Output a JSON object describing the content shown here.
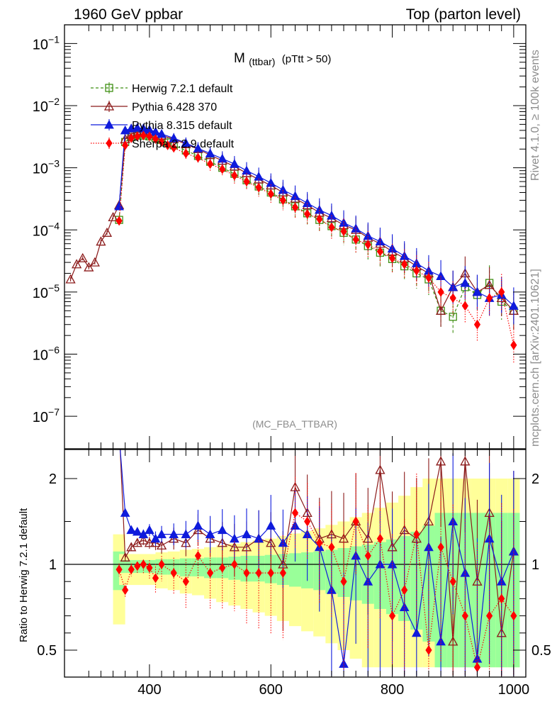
{
  "header": {
    "left": "1960 GeV ppbar",
    "right": "Top (parton level)"
  },
  "side_labels": {
    "rivet": "Rivet 4.1.0, ≥ 100k events",
    "mcplots": "mcplots.cern.ch [arXiv:2401.10621]"
  },
  "watermark": "(MC_FBA_TTBAR)",
  "plot_title": {
    "main": "M",
    "sub": "(ttbar)",
    "cut": "(pTtt > 50)"
  },
  "colors": {
    "herwig": "#3f8f13",
    "pythia6": "#8b1a1a",
    "pythia8": "#0f1bdc",
    "sherpa": "#ff0000",
    "band_yellow": "#ffff99",
    "band_green": "#99ff99"
  },
  "chart_data": [
    {
      "type": "line",
      "log_y": true,
      "title": "M (ttbar) (pTtt > 50)",
      "xlabel": "",
      "ylabel": "",
      "xlim": [
        260,
        1020
      ],
      "ylim": [
        3e-08,
        0.2
      ],
      "y_ticks": [
        {
          "value": 1e-07,
          "base": "10",
          "exp": "−7"
        },
        {
          "value": 1e-06,
          "base": "10",
          "exp": "−6"
        },
        {
          "value": 1e-05,
          "base": "10",
          "exp": "−5"
        },
        {
          "value": 0.0001,
          "base": "10",
          "exp": "−4"
        },
        {
          "value": 0.001,
          "base": "10",
          "exp": "−3"
        },
        {
          "value": 0.01,
          "base": "10",
          "exp": "−2"
        },
        {
          "value": 0.1,
          "base": "10",
          "exp": "−1"
        }
      ],
      "legend": [
        {
          "key": "herwig",
          "label": "Herwig 7.2.1 default"
        },
        {
          "key": "pythia6",
          "label": "Pythia 6.428 370"
        },
        {
          "key": "pythia8",
          "label": "Pythia 8.315 default"
        },
        {
          "key": "sherpa",
          "label": "Sherpa 2.2.9 default"
        }
      ],
      "series": [
        {
          "key": "herwig",
          "name": "Herwig 7.2.1 default",
          "marker": "square-open",
          "dash": "4,3",
          "x": [
            350,
            360,
            370,
            380,
            390,
            400,
            410,
            420,
            430,
            440,
            460,
            480,
            500,
            520,
            540,
            560,
            580,
            600,
            620,
            640,
            660,
            680,
            700,
            720,
            740,
            760,
            780,
            800,
            820,
            840,
            860,
            880,
            900,
            920,
            940,
            960,
            980,
            1000
          ],
          "y": [
            0.000145,
            0.0026,
            0.0031,
            0.0033,
            0.0033,
            0.0032,
            0.003,
            0.0028,
            0.00255,
            0.0023,
            0.0019,
            0.00155,
            0.00125,
            0.001,
            0.0008,
            0.00063,
            0.0005,
            0.0004,
            0.00031,
            0.00024,
            0.000185,
            0.000145,
            0.000115,
            9e-05,
            7e-05,
            5.5e-05,
            4.3e-05,
            3.4e-05,
            2.6e-05,
            2e-05,
            1.6e-05,
            5e-06,
            4e-06,
            1.2e-05,
            9e-06,
            1.4e-05,
            7e-06,
            5e-06
          ]
        },
        {
          "key": "pythia6",
          "name": "Pythia 6.428 370",
          "marker": "triangle-open",
          "dash": "",
          "x": [
            270,
            280,
            290,
            300,
            310,
            320,
            330,
            340,
            350,
            360,
            370,
            380,
            390,
            400,
            410,
            420,
            440,
            460,
            480,
            500,
            520,
            540,
            560,
            580,
            600,
            620,
            640,
            660,
            680,
            700,
            720,
            740,
            760,
            780,
            800,
            820,
            840,
            860,
            880,
            900,
            920,
            940,
            960,
            980,
            1000
          ],
          "y": [
            1.6e-05,
            2.8e-05,
            3.5e-05,
            2.5e-05,
            3e-05,
            6.5e-05,
            9e-05,
            0.00016,
            0.00025,
            0.0029,
            0.0035,
            0.0037,
            0.0038,
            0.0037,
            0.0035,
            0.0033,
            0.0029,
            0.0024,
            0.002,
            0.0016,
            0.0013,
            0.00105,
            0.00082,
            0.00065,
            0.00052,
            0.0004,
            0.00032,
            0.00025,
            0.00019,
            0.000155,
            0.00012,
            0.0001,
            7.5e-05,
            6e-05,
            4.5e-05,
            3.5e-05,
            2.6e-05,
            2e-05,
            5e-06,
            1.2e-05,
            2e-05,
            1e-05,
            1.3e-05,
            8e-06,
            5e-06
          ]
        },
        {
          "key": "pythia8",
          "name": "Pythia 8.315 default",
          "marker": "triangle-filled",
          "dash": "",
          "x": [
            350,
            360,
            370,
            380,
            390,
            400,
            410,
            420,
            440,
            460,
            480,
            500,
            520,
            540,
            560,
            580,
            600,
            620,
            640,
            660,
            680,
            700,
            720,
            740,
            760,
            780,
            800,
            820,
            840,
            860,
            880,
            900,
            920,
            940,
            960,
            980,
            1000
          ],
          "y": [
            0.00024,
            0.004,
            0.0043,
            0.0044,
            0.0043,
            0.0041,
            0.0038,
            0.0035,
            0.003,
            0.0025,
            0.00205,
            0.0017,
            0.0014,
            0.00115,
            0.0009,
            0.00072,
            0.00057,
            0.00044,
            0.00035,
            0.00027,
            0.00021,
            0.00017,
            0.00013,
            0.000105,
            8e-05,
            6.5e-05,
            5e-05,
            3.8e-05,
            2.9e-05,
            2.2e-05,
            1.8e-05,
            1.2e-05,
            1.4e-05,
            1e-05,
            8e-06,
            9e-06,
            6e-06
          ]
        },
        {
          "key": "sherpa",
          "name": "Sherpa 2.2.9 default",
          "marker": "diamond-filled",
          "dash": "1.5,2",
          "x": [
            350,
            360,
            370,
            380,
            390,
            400,
            410,
            420,
            430,
            440,
            460,
            480,
            500,
            520,
            540,
            560,
            580,
            600,
            620,
            640,
            660,
            680,
            700,
            720,
            740,
            760,
            780,
            800,
            820,
            840,
            860,
            880,
            900,
            920,
            940,
            960,
            980,
            1000
          ],
          "y": [
            0.00014,
            0.0023,
            0.003,
            0.0032,
            0.0033,
            0.0032,
            0.0029,
            0.0026,
            0.0023,
            0.0021,
            0.0017,
            0.00145,
            0.00115,
            0.00095,
            0.00075,
            0.0006,
            0.00048,
            0.00038,
            0.0003,
            0.00023,
            0.00018,
            0.00015,
            0.00011,
            9.5e-05,
            7e-05,
            5.8e-05,
            4.5e-05,
            3.5e-05,
            2.8e-05,
            2.2e-05,
            1.7e-05,
            1e-05,
            8e-06,
            6e-06,
            3e-06,
            8e-06,
            1e-05,
            1.4e-06
          ]
        }
      ]
    },
    {
      "type": "line",
      "title": "",
      "xlabel": "",
      "ylabel": "Ratio to Herwig 7.2.1 default",
      "xlim": [
        260,
        1020
      ],
      "ylim": [
        0.4,
        2.5
      ],
      "x_ticks": [
        400,
        600,
        800,
        1000
      ],
      "y_ticks": [
        0.5,
        1,
        2
      ],
      "y_tick_labels": [
        "0.5",
        "1",
        "2"
      ],
      "reference_line": 1,
      "band_x": [
        350,
        360,
        370,
        380,
        390,
        400,
        420,
        440,
        460,
        480,
        500,
        520,
        540,
        560,
        580,
        600,
        620,
        640,
        660,
        680,
        700,
        720,
        740,
        760,
        780,
        800,
        820,
        840,
        860,
        880,
        900,
        920,
        940,
        960,
        980,
        1000
      ],
      "band_green": [
        0.15,
        0.05,
        0.05,
        0.05,
        0.05,
        0.05,
        0.06,
        0.06,
        0.07,
        0.07,
        0.08,
        0.08,
        0.09,
        0.1,
        0.1,
        0.11,
        0.12,
        0.13,
        0.14,
        0.15,
        0.17,
        0.19,
        0.21,
        0.23,
        0.26,
        0.29,
        0.33,
        0.38,
        0.45,
        0.6,
        0.6,
        0.6,
        0.6,
        0.6,
        0.6,
        0.6
      ],
      "band_yellow": [
        0.35,
        0.12,
        0.12,
        0.12,
        0.12,
        0.12,
        0.14,
        0.15,
        0.17,
        0.18,
        0.2,
        0.22,
        0.24,
        0.26,
        0.28,
        0.3,
        0.33,
        0.36,
        0.39,
        0.42,
        0.46,
        0.5,
        0.55,
        0.6,
        0.66,
        0.72,
        0.8,
        0.9,
        1.0,
        1.0,
        1.0,
        1.0,
        1.0,
        1.0,
        1.0,
        1.0
      ],
      "series": [
        {
          "key": "pythia6",
          "name": "Pythia 6.428 370",
          "x": [
            350,
            360,
            370,
            380,
            390,
            400,
            410,
            420,
            440,
            460,
            480,
            500,
            520,
            540,
            560,
            580,
            600,
            620,
            640,
            660,
            680,
            700,
            720,
            740,
            760,
            780,
            800,
            820,
            840,
            860,
            880,
            900,
            920,
            940,
            960,
            980,
            1000
          ],
          "y": [
            2.6,
            1.08,
            1.2,
            1.25,
            1.28,
            1.25,
            1.25,
            1.22,
            1.3,
            1.25,
            1.4,
            1.3,
            1.25,
            1.2,
            1.2,
            1.3,
            1.25,
            1.0,
            1.9,
            1.6,
            1.3,
            1.35,
            1.3,
            1.5,
            1.3,
            2.1,
            1.2,
            1.4,
            1.3,
            1.5,
            2.2,
            0.55,
            2.2,
            0.9,
            1.6,
            0.6,
            1.15
          ]
        },
        {
          "key": "pythia8",
          "name": "Pythia 8.315 default",
          "x": [
            350,
            360,
            370,
            380,
            390,
            400,
            410,
            420,
            440,
            460,
            480,
            500,
            520,
            540,
            560,
            580,
            600,
            620,
            640,
            660,
            680,
            700,
            720,
            740,
            760,
            780,
            800,
            820,
            840,
            860,
            880,
            900,
            920,
            940,
            960,
            980,
            1000
          ],
          "y": [
            2.5,
            1.6,
            1.4,
            1.38,
            1.35,
            1.4,
            1.3,
            1.35,
            1.35,
            1.35,
            1.45,
            1.35,
            1.4,
            1.3,
            1.35,
            1.3,
            1.45,
            1.25,
            1.45,
            1.35,
            1.2,
            0.85,
            0.42,
            1.1,
            0.9,
            1.0,
            1.0,
            0.75,
            0.6,
            1.2,
            0.55,
            1.5,
            0.95,
            0.45,
            1.3,
            0.9,
            1.15
          ]
        },
        {
          "key": "sherpa",
          "name": "Sherpa 2.2.9 default",
          "x": [
            350,
            360,
            370,
            380,
            390,
            400,
            410,
            420,
            440,
            460,
            480,
            500,
            520,
            540,
            560,
            580,
            600,
            620,
            640,
            660,
            680,
            700,
            720,
            740,
            760,
            780,
            800,
            820,
            840,
            860,
            880,
            900,
            920,
            940,
            960,
            980,
            1000
          ],
          "y": [
            0.97,
            0.85,
            0.97,
            0.99,
            1.0,
            0.98,
            0.92,
            1.0,
            0.95,
            0.9,
            1.1,
            0.95,
            0.98,
            1.0,
            0.95,
            0.95,
            0.95,
            0.95,
            1.6,
            1.5,
            1.25,
            1.2,
            0.9,
            1.5,
            1.1,
            1.3,
            0.7,
            0.85,
            1.35,
            0.5,
            1.2,
            0.9,
            0.7,
            0.4,
            0.7,
            0.8,
            0.7
          ]
        }
      ]
    }
  ]
}
